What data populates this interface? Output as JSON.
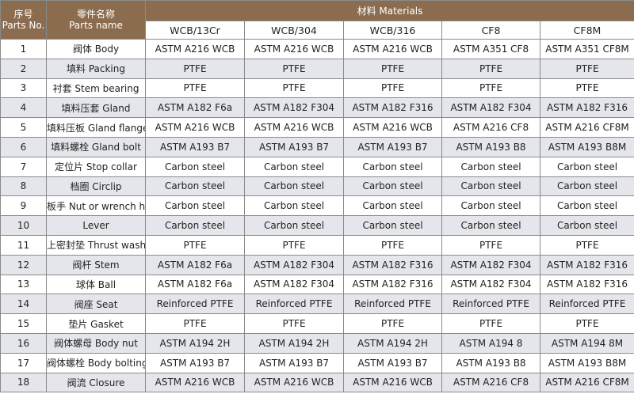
{
  "header": {
    "parts_no": [
      "序号",
      "Parts No."
    ],
    "parts_name": [
      "零件名称",
      "Parts name"
    ],
    "materials": "材料 Materials",
    "grades": [
      "WCB/13Cr",
      "WCB/304",
      "WCB/316",
      "CF8",
      "CF8M"
    ]
  },
  "rows": [
    [
      "1",
      "阀体 Body",
      "ASTM A216 WCB",
      "ASTM A216 WCB",
      "ASTM A216 WCB",
      "ASTM A351 CF8",
      "ASTM A351 CF8M"
    ],
    [
      "2",
      "填料 Packing",
      "PTFE",
      "PTFE",
      "PTFE",
      "PTFE",
      "PTFE"
    ],
    [
      "3",
      "衬套 Stem bearing",
      "PTFE",
      "PTFE",
      "PTFE",
      "PTFE",
      "PTFE"
    ],
    [
      "4",
      "填料压套 Gland",
      "ASTM A182 F6a",
      "ASTM A182 F304",
      "ASTM A182 F316",
      "ASTM A182 F304",
      "ASTM A182 F316"
    ],
    [
      "5",
      "填料压板 Gland flange",
      "ASTM A216 WCB",
      "ASTM A216 WCB",
      "ASTM A216 WCB",
      "ASTM A216 CF8",
      "ASTM A216 CF8M"
    ],
    [
      "6",
      "填料螺栓 Gland bolt",
      "ASTM A193 B7",
      "ASTM A193 B7",
      "ASTM A193 B7",
      "ASTM A193 B8",
      "ASTM A193 B8M"
    ],
    [
      "7",
      "定位片 Stop collar",
      "Carbon steel",
      "Carbon steel",
      "Carbon steel",
      "Carbon steel",
      "Carbon steel"
    ],
    [
      "8",
      "档圈 Circlip",
      "Carbon steel",
      "Carbon steel",
      "Carbon steel",
      "Carbon steel",
      "Carbon steel"
    ],
    [
      "9",
      "板手 Nut or wrench head",
      "Carbon steel",
      "Carbon steel",
      "Carbon steel",
      "Carbon steel",
      "Carbon steel"
    ],
    [
      "10",
      "Lever",
      "Carbon steel",
      "Carbon steel",
      "Carbon steel",
      "Carbon steel",
      "Carbon steel"
    ],
    [
      "11",
      "上密封垫 Thrust washer",
      "PTFE",
      "PTFE",
      "PTFE",
      "PTFE",
      "PTFE"
    ],
    [
      "12",
      "阀杆 Stem",
      "ASTM A182 F6a",
      "ASTM A182 F304",
      "ASTM A182 F316",
      "ASTM A182 F304",
      "ASTM A182 F316"
    ],
    [
      "13",
      "球体 Ball",
      "ASTM A182 F6a",
      "ASTM A182 F304",
      "ASTM A182 F316",
      "ASTM A182 F304",
      "ASTM A182 F316"
    ],
    [
      "14",
      "阀座 Seat",
      "Reinforced PTFE",
      "Reinforced PTFE",
      "Reinforced PTFE",
      "Reinforced PTFE",
      "Reinforced PTFE"
    ],
    [
      "15",
      "垫片 Gasket",
      "PTFE",
      "PTFE",
      "PTFE",
      "PTFE",
      "PTFE"
    ],
    [
      "16",
      "阀体螺母 Body nut",
      "ASTM A194 2H",
      "ASTM A194 2H",
      "ASTM A194 2H",
      "ASTM A194 8",
      "ASTM A194 8M"
    ],
    [
      "17",
      "阀体螺栓 Body bolting",
      "ASTM A193 B7",
      "ASTM A193 B7",
      "ASTM A193 B7",
      "ASTM A193 B8",
      "ASTM A193 B8M"
    ],
    [
      "18",
      "阀流 Closure",
      "ASTM A216 WCB",
      "ASTM A216 WCB",
      "ASTM A216 WCB",
      "ASTM A216 CF8",
      "ASTM A216 CF8M"
    ]
  ]
}
